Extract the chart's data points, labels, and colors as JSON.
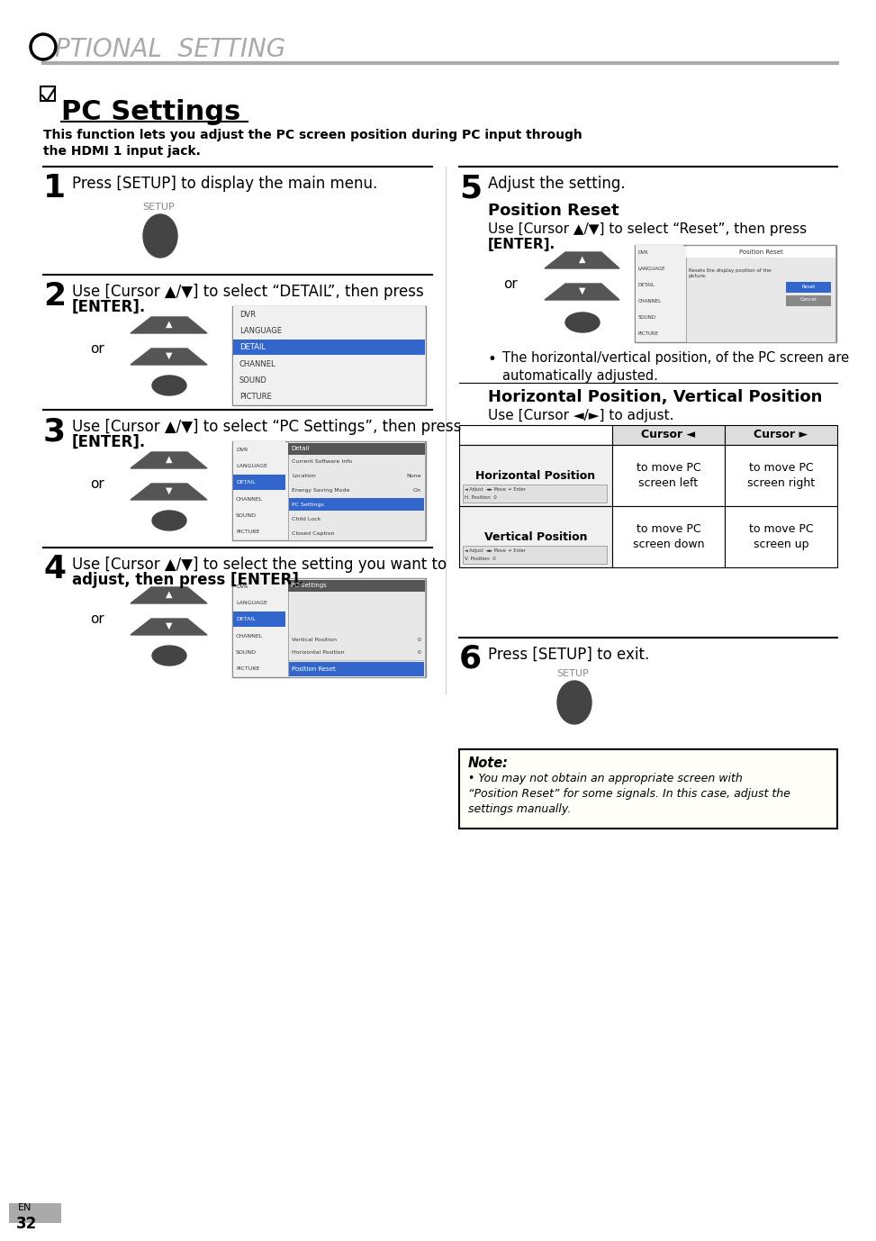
{
  "page_title": "PTIONAL  SETTING",
  "section_title": "PC Settings",
  "section_subtitle": "This function lets you adjust the PC screen position during PC input through\nthe HDMI 1 input jack.",
  "bg_color": "#ffffff",
  "text_color": "#000000",
  "gray_color": "#888888",
  "step1_text": "Press [SETUP] to display the main menu.",
  "step2_text_a": "Use [Cursor ▲/▼] to select “DETAIL”, then press",
  "step2_text_b": "[ENTER].",
  "step3_text_a": "Use [Cursor ▲/▼] to select “PC Settings”, then press",
  "step3_text_b": "[ENTER].",
  "step4_text_a": "Use [Cursor ▲/▼] to select the setting you want to",
  "step4_text_b": "adjust, then press [ENTER].",
  "step5_text": "Adjust the setting.",
  "step6_text": "Press [SETUP] to exit.",
  "pos_reset_title": "Position Reset",
  "pos_reset_text_a": "Use [Cursor ▲/▼] to select “Reset”, then press",
  "pos_reset_text_b": "[ENTER].",
  "pos_reset_bullet": "The horizontal/vertical position, of the PC screen are\nautomatically adjusted.",
  "horiz_vert_title": "Horizontal Position, Vertical Position",
  "horiz_vert_text": "Use [Cursor ◄/►] to adjust.",
  "table_col1": "Cursor ◄",
  "table_col2": "Cursor ►",
  "table_horiz": "Horizontal Position",
  "table_vert": "Vertical Position",
  "cell_h_left": "to move PC\nscreen left",
  "cell_h_right": "to move PC\nscreen right",
  "cell_v_down": "to move PC\nscreen down",
  "cell_v_up": "to move PC\nscreen up",
  "note_title": "Note:",
  "note_text": "You may not obtain an appropriate screen with\n“Position Reset” for some signals. In this case, adjust the\nsettings manually.",
  "page_num": "32",
  "page_lang": "EN"
}
